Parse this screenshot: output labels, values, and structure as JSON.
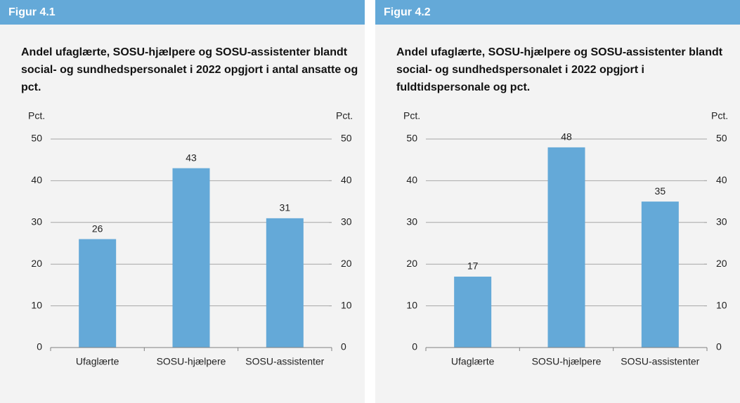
{
  "chart_data": [
    {
      "type": "bar",
      "header": "Figur 4.1",
      "title": "Andel ufaglærte, SOSU-hjælpere og SOSU-assistenter blandt social- og sundhedspersonalet i 2022 opgjort i antal ansatte og pct.",
      "y_label": "Pct.",
      "y2_label": "Pct.",
      "categories": [
        "Ufaglærte",
        "SOSU-hjælpere",
        "SOSU-assistenter"
      ],
      "values": [
        26,
        43,
        31
      ],
      "color": "#64a9d8",
      "ylim": [
        0,
        50
      ],
      "yticks": [
        0,
        10,
        20,
        30,
        40,
        50
      ],
      "y2lim": [
        0,
        50
      ],
      "y2ticks": [
        0,
        10,
        20,
        30,
        40,
        50
      ],
      "grid": true
    },
    {
      "type": "bar",
      "header": "Figur 4.2",
      "title": "Andel ufaglærte, SOSU-hjælpere og SOSU-assistenter blandt social- og sundhedspersonalet i 2022 opgjort i fuldtidspersonale og pct.",
      "y_label": "Pct.",
      "y2_label": "Pct.",
      "categories": [
        "Ufaglærte",
        "SOSU-hjælpere",
        "SOSU-assistenter"
      ],
      "values": [
        17,
        48,
        35
      ],
      "color": "#64a9d8",
      "ylim": [
        0,
        50
      ],
      "yticks": [
        0,
        10,
        20,
        30,
        40,
        50
      ],
      "y2lim": [
        0,
        50
      ],
      "y2ticks": [
        0,
        10,
        20,
        30,
        40,
        50
      ],
      "grid": true
    }
  ]
}
